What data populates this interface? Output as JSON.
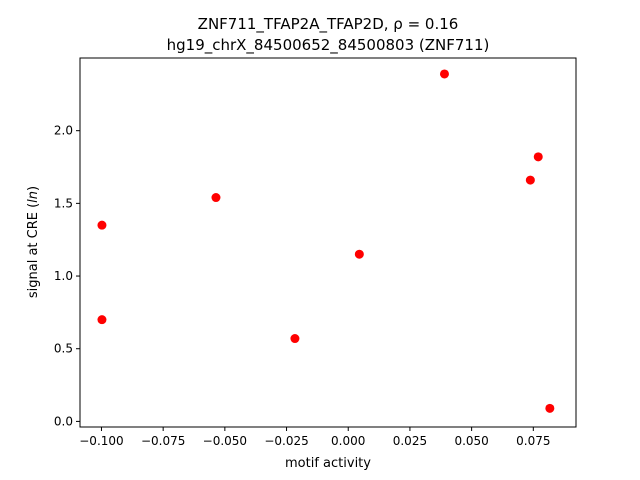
{
  "chart_data": {
    "type": "scatter",
    "title_line1": "ZNF711_TFAP2A_TFAP2D, ρ = 0.16",
    "title_line2": "hg19_chrX_84500652_84500803 (ZNF711)",
    "xlabel": "motif activity",
    "ylabel": "signal at CRE (ln)",
    "xlim": [
      -0.1087,
      0.0923
    ],
    "ylim": [
      -0.0385,
      2.5
    ],
    "x_ticks": [
      -0.1,
      -0.075,
      -0.05,
      -0.025,
      0.0,
      0.025,
      0.05,
      0.075
    ],
    "x_tick_labels": [
      "−0.100",
      "−0.075",
      "−0.050",
      "−0.025",
      "0.000",
      "0.025",
      "0.050",
      "0.075"
    ],
    "y_ticks": [
      0.0,
      0.5,
      1.0,
      1.5,
      2.0
    ],
    "y_tick_labels": [
      "0.0",
      "0.5",
      "1.0",
      "1.5",
      "2.0"
    ],
    "grid": false,
    "marker_color": "#ff0000",
    "points": [
      {
        "x": -0.0998,
        "y": 1.35
      },
      {
        "x": -0.0998,
        "y": 0.7
      },
      {
        "x": -0.0536,
        "y": 1.54
      },
      {
        "x": -0.0216,
        "y": 0.57
      },
      {
        "x": 0.0045,
        "y": 1.15
      },
      {
        "x": 0.039,
        "y": 2.39
      },
      {
        "x": 0.0738,
        "y": 1.66
      },
      {
        "x": 0.077,
        "y": 1.82
      },
      {
        "x": 0.0817,
        "y": 0.09
      }
    ]
  }
}
